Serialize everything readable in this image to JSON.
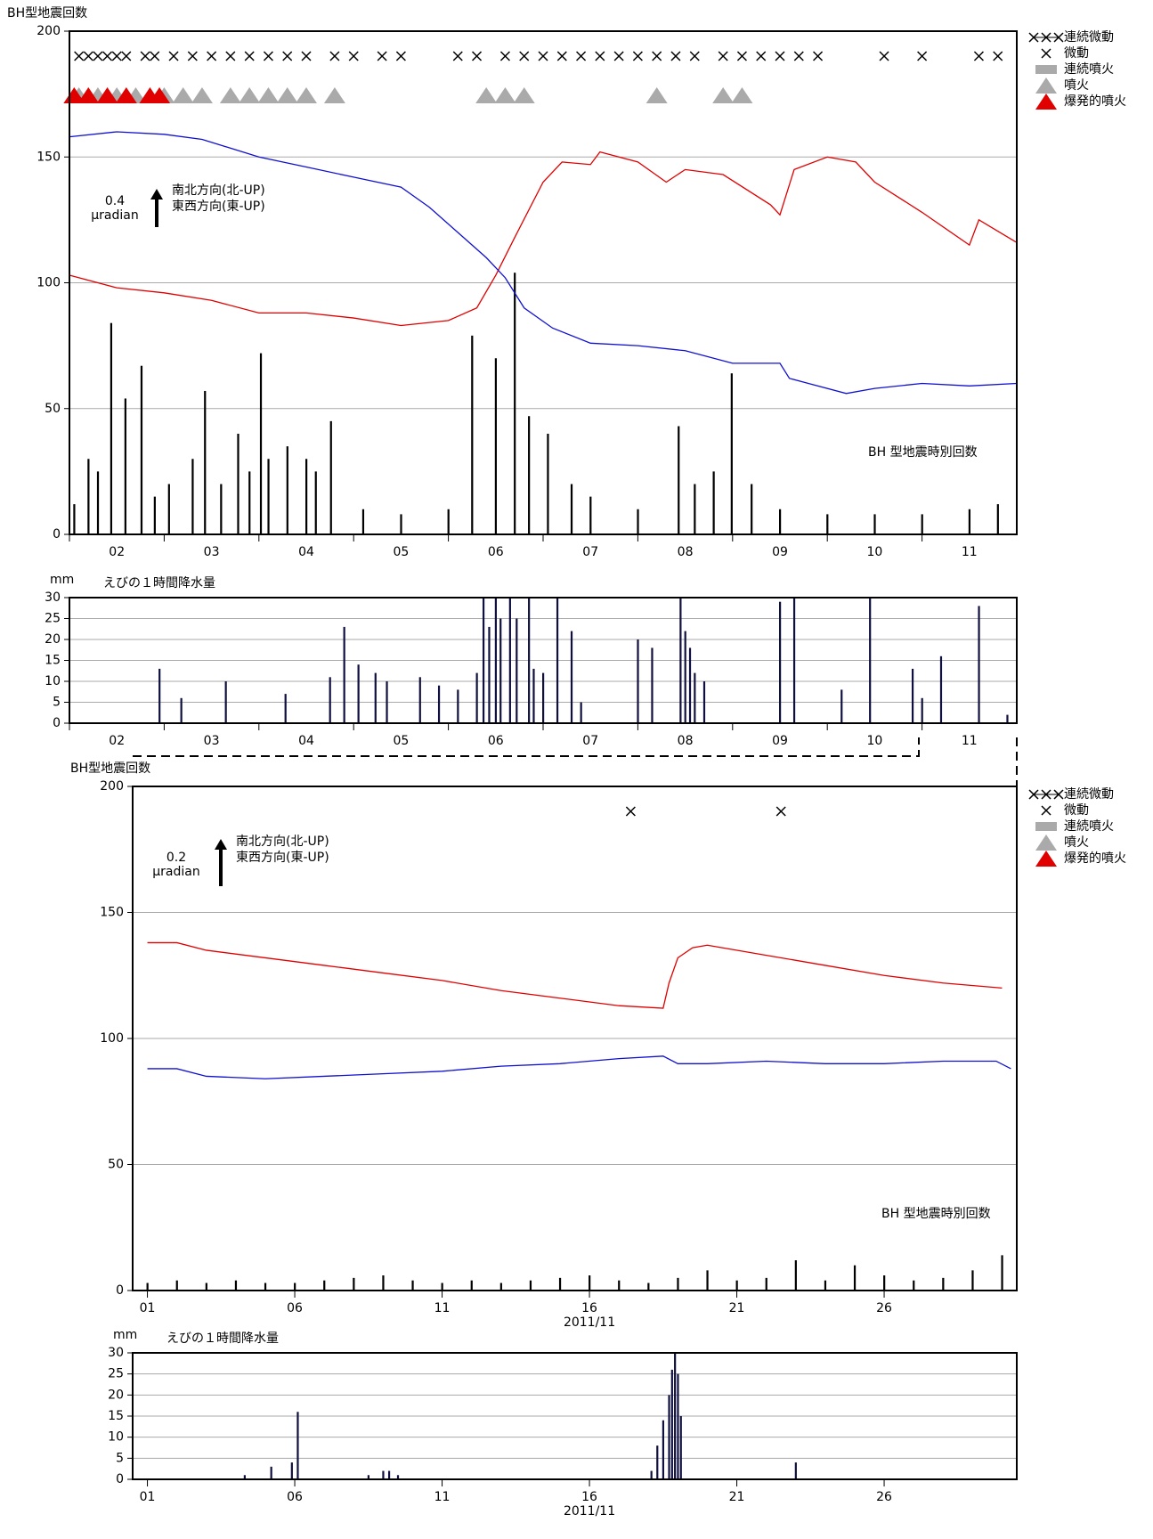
{
  "chart_data": [
    {
      "type": "combo",
      "y_label": "BH型地震回数",
      "xlim": [
        1.5,
        11.5
      ],
      "ylim": [
        0,
        200
      ],
      "yticks": [
        0,
        50,
        100,
        150,
        200
      ],
      "xticks": [
        {
          "value": 2,
          "label": "02"
        },
        {
          "value": 3,
          "label": "03"
        },
        {
          "value": 4,
          "label": "04"
        },
        {
          "value": 5,
          "label": "05"
        },
        {
          "value": 6,
          "label": "06"
        },
        {
          "value": 7,
          "label": "07"
        },
        {
          "value": 8,
          "label": "08"
        },
        {
          "value": 9,
          "label": "09"
        },
        {
          "value": 10,
          "label": "10"
        },
        {
          "value": 11,
          "label": "11"
        }
      ],
      "grid": true,
      "scale_value": "0.4",
      "scale_unit": "μradian",
      "series": [
        {
          "name": "南北方向(北-UP)",
          "color": "#e00000",
          "type": "line",
          "x": [
            1.5,
            2,
            2.5,
            3,
            3.5,
            4,
            4.5,
            5,
            5.5,
            5.8,
            6,
            6.2,
            6.5,
            6.7,
            7,
            7.1,
            7.5,
            7.8,
            8,
            8.4,
            8.9,
            9,
            9.15,
            9.5,
            9.8,
            10,
            10.5,
            11,
            11.1,
            11.5
          ],
          "values": [
            103,
            98,
            96,
            93,
            88,
            88,
            86,
            83,
            85,
            90,
            103,
            118,
            140,
            148,
            147,
            152,
            148,
            140,
            145,
            143,
            131,
            127,
            145,
            150,
            148,
            140,
            128,
            115,
            125,
            116
          ]
        },
        {
          "name": "東西方向(東-UP)",
          "color": "#1010d0",
          "type": "line",
          "x": [
            1.5,
            2,
            2.5,
            2.9,
            3.5,
            4,
            4.5,
            5,
            5.3,
            5.6,
            5.9,
            6.1,
            6.3,
            6.6,
            7,
            7.5,
            8,
            8.5,
            9,
            9.1,
            9.3,
            9.7,
            10,
            10.5,
            11,
            11.5
          ],
          "values": [
            158,
            160,
            159,
            157,
            150,
            146,
            142,
            138,
            130,
            120,
            110,
            102,
            90,
            82,
            76,
            75,
            73,
            68,
            68,
            62,
            60,
            56,
            58,
            60,
            59,
            60
          ]
        },
        {
          "name": "BH 型地震時別回数",
          "color": "#000000",
          "type": "bar",
          "x": [
            1.55,
            1.7,
            1.8,
            1.94,
            2.09,
            2.26,
            2.4,
            2.55,
            2.8,
            2.93,
            3.1,
            3.28,
            3.4,
            3.52,
            3.6,
            3.8,
            4.0,
            4.1,
            4.26,
            4.6,
            5.0,
            5.5,
            5.75,
            6.0,
            6.2,
            6.35,
            6.55,
            6.8,
            7.0,
            7.5,
            7.93,
            8.1,
            8.3,
            8.49,
            8.7,
            9.0,
            9.5,
            10,
            10.5,
            11,
            11.3
          ],
          "values": [
            12,
            30,
            25,
            84,
            54,
            67,
            15,
            20,
            30,
            57,
            20,
            40,
            25,
            72,
            30,
            35,
            30,
            25,
            45,
            10,
            8,
            10,
            79,
            70,
            104,
            47,
            40,
            20,
            15,
            10,
            43,
            20,
            25,
            64,
            20,
            10,
            8,
            8,
            8,
            10,
            12
          ]
        }
      ],
      "events": [
        {
          "name": "連続微動",
          "symbol": "line-cross"
        },
        {
          "name": "微動",
          "symbol": "cross",
          "x": [
            1.6,
            1.7,
            1.8,
            1.9,
            2.0,
            2.1,
            2.3,
            2.4,
            2.6,
            2.8,
            3.0,
            3.2,
            3.4,
            3.6,
            3.8,
            4.0,
            4.3,
            4.5,
            4.8,
            5.0,
            5.6,
            5.8,
            6.1,
            6.3,
            6.5,
            6.7,
            6.9,
            7.1,
            7.3,
            7.5,
            7.7,
            7.9,
            8.1,
            8.4,
            8.6,
            8.8,
            9.0,
            9.2,
            9.4,
            10.1,
            10.5,
            11.1,
            11.3
          ]
        },
        {
          "name": "連続噴火",
          "symbol": "band"
        },
        {
          "name": "噴火",
          "symbol": "triangle",
          "x": [
            1.6,
            1.8,
            2.0,
            2.2,
            2.5,
            2.7,
            2.9,
            3.2,
            3.4,
            3.6,
            3.8,
            4.0,
            4.3,
            5.9,
            6.1,
            6.3,
            7.7,
            8.4,
            8.6
          ]
        },
        {
          "name": "爆発的噴火",
          "symbol": "red-triangle",
          "x": [
            1.55,
            1.7,
            1.9,
            2.1,
            2.35,
            2.45
          ]
        }
      ]
    },
    {
      "type": "bar",
      "title": "えびの１時間降水量",
      "y_unit": "mm",
      "xlim": [
        1.5,
        11.5
      ],
      "ylim": [
        0,
        30
      ],
      "yticks": [
        0,
        5,
        10,
        15,
        20,
        25,
        30
      ],
      "xticks": [
        {
          "value": 2,
          "label": "02"
        },
        {
          "value": 3,
          "label": "03"
        },
        {
          "value": 4,
          "label": "04"
        },
        {
          "value": 5,
          "label": "05"
        },
        {
          "value": 6,
          "label": "06"
        },
        {
          "value": 7,
          "label": "07"
        },
        {
          "value": 8,
          "label": "08"
        },
        {
          "value": 9,
          "label": "09"
        },
        {
          "value": 10,
          "label": "10"
        },
        {
          "value": 11,
          "label": "11"
        }
      ],
      "grid": true,
      "color": "#101040",
      "x": [
        2.45,
        2.68,
        3.15,
        3.78,
        4.25,
        4.4,
        4.55,
        4.73,
        4.85,
        5.2,
        5.4,
        5.6,
        5.8,
        5.87,
        5.93,
        6.0,
        6.05,
        6.15,
        6.22,
        6.35,
        6.4,
        6.5,
        6.65,
        6.8,
        6.9,
        7.5,
        7.65,
        7.95,
        8.0,
        8.05,
        8.1,
        8.2,
        9.0,
        9.15,
        9.65,
        9.95,
        10.4,
        10.5,
        10.7,
        11.1,
        11.4
      ],
      "values": [
        13,
        6,
        10,
        7,
        11,
        23,
        14,
        12,
        10,
        11,
        9,
        8,
        12,
        30,
        23,
        30,
        25,
        30,
        25,
        30,
        13,
        12,
        30,
        22,
        5,
        20,
        18,
        30,
        22,
        18,
        12,
        10,
        29,
        30,
        8,
        30,
        13,
        6,
        16,
        28,
        2
      ]
    },
    {
      "type": "combo",
      "y_label": "BH型地震回数",
      "xlim": [
        0.5,
        30.5
      ],
      "ylim": [
        0,
        200
      ],
      "yticks": [
        0,
        50,
        100,
        150,
        200
      ],
      "xticks": [
        {
          "value": 1,
          "label": "01"
        },
        {
          "value": 6,
          "label": "06"
        },
        {
          "value": 11,
          "label": "11"
        },
        {
          "value": 16,
          "label": "16"
        },
        {
          "value": 21,
          "label": "21"
        },
        {
          "value": 26,
          "label": "26"
        }
      ],
      "x_sublabel": "2011/11",
      "grid": true,
      "scale_value": "0.2",
      "scale_unit": "μradian",
      "series": [
        {
          "name": "南北方向(北-UP)",
          "color": "#e00000",
          "type": "line",
          "x": [
            1,
            2,
            3,
            5,
            7,
            9,
            11,
            13,
            15,
            17,
            18.5,
            18.7,
            19,
            19.5,
            20,
            22,
            24,
            26,
            28,
            30
          ],
          "values": [
            138,
            138,
            135,
            132,
            129,
            126,
            123,
            119,
            116,
            113,
            112,
            122,
            132,
            136,
            137,
            133,
            129,
            125,
            122,
            120
          ]
        },
        {
          "name": "東西方向(東-UP)",
          "color": "#1010d0",
          "type": "line",
          "x": [
            1,
            2,
            3,
            5,
            7,
            9,
            11,
            13,
            15,
            17,
            18.5,
            19,
            20,
            22,
            24,
            26,
            28,
            29.8,
            30.3
          ],
          "values": [
            88,
            88,
            85,
            84,
            85,
            86,
            87,
            89,
            90,
            92,
            93,
            90,
            90,
            91,
            90,
            90,
            91,
            91,
            88
          ]
        },
        {
          "name": "BH 型地震時別回数",
          "color": "#000000",
          "type": "bar",
          "x": [
            1,
            2,
            3,
            4,
            5,
            6,
            7,
            8,
            9,
            10,
            11,
            12,
            13,
            14,
            15,
            16,
            17,
            18,
            19,
            20,
            21,
            22,
            23,
            24,
            25,
            26,
            27,
            28,
            29,
            30
          ],
          "values": [
            3,
            4,
            3,
            4,
            3,
            3,
            4,
            5,
            6,
            4,
            3,
            4,
            3,
            4,
            5,
            6,
            4,
            3,
            5,
            8,
            4,
            5,
            12,
            4,
            10,
            6,
            4,
            5,
            8,
            14
          ]
        }
      ],
      "events": [
        {
          "name": "連続微動",
          "symbol": "line-cross"
        },
        {
          "name": "微動",
          "symbol": "cross",
          "x": [
            17.4,
            22.5
          ]
        },
        {
          "name": "連続噴火",
          "symbol": "band"
        },
        {
          "name": "噴火",
          "symbol": "triangle"
        },
        {
          "name": "爆発的噴火",
          "symbol": "red-triangle"
        }
      ]
    },
    {
      "type": "bar",
      "title": "えびの１時間降水量",
      "y_unit": "mm",
      "xlim": [
        0.5,
        30.5
      ],
      "ylim": [
        0,
        30
      ],
      "yticks": [
        0,
        5,
        10,
        15,
        20,
        25,
        30
      ],
      "xticks": [
        {
          "value": 1,
          "label": "01"
        },
        {
          "value": 6,
          "label": "06"
        },
        {
          "value": 11,
          "label": "11"
        },
        {
          "value": 16,
          "label": "16"
        },
        {
          "value": 21,
          "label": "21"
        },
        {
          "value": 26,
          "label": "26"
        }
      ],
      "x_sublabel": "2011/11",
      "grid": true,
      "color": "#101040",
      "x": [
        4.3,
        5.2,
        5.9,
        6.1,
        8.5,
        9.0,
        9.2,
        9.5,
        18.1,
        18.3,
        18.5,
        18.7,
        18.8,
        18.9,
        19.0,
        19.1,
        23.0
      ],
      "values": [
        1,
        3,
        4,
        16,
        1,
        2,
        2,
        1,
        2,
        8,
        14,
        20,
        26,
        30,
        25,
        15,
        4
      ]
    }
  ]
}
